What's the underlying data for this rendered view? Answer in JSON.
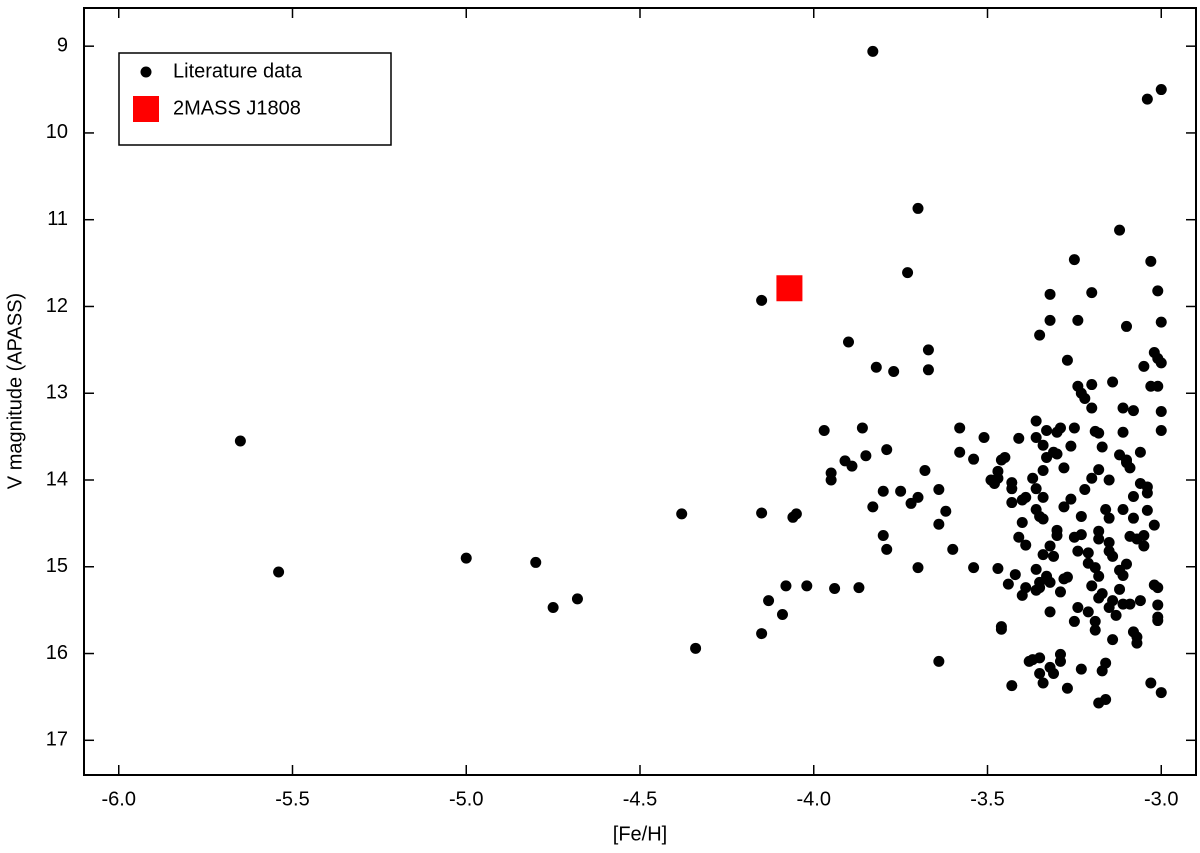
{
  "chart_data": {
    "type": "scatter",
    "xlabel": "[Fe/H]",
    "ylabel": "V magnitude (APASS)",
    "xlim": [
      -6.1,
      -2.9
    ],
    "ylim": [
      8.56,
      17.4
    ],
    "y_inverted": true,
    "xticks": [
      {
        "value": -6,
        "label": "-6.0"
      },
      -5.5,
      {
        "value": -5,
        "label": "-5.0"
      },
      -4.5,
      {
        "value": -4,
        "label": "-4.0"
      },
      -3.5,
      {
        "value": -3,
        "label": "-3.0"
      }
    ],
    "yticks": [
      9,
      10,
      11,
      12,
      13,
      14,
      15,
      16,
      17
    ],
    "legend": "top-left",
    "series": [
      {
        "name": "Literature data",
        "color": "#000000",
        "marker": "circle",
        "x": [
          -3.83,
          -3.0,
          -3.04,
          -3.7,
          -3.12,
          -3.25,
          -3.03,
          -3.73,
          -3.2,
          -3.01,
          -4.15,
          -3.32,
          -3.0,
          -3.32,
          -3.24,
          -3.1,
          -3.35,
          -3.9,
          -3.67,
          -3.02,
          -3.01,
          -3.27,
          -3.05,
          -3.0,
          -3.82,
          -3.77,
          -3.67,
          -3.14,
          -3.24,
          -3.2,
          -3.03,
          -3.01,
          -3.22,
          -3.23,
          -3.2,
          -3.11,
          -3.08,
          -3.0,
          -3.36,
          -3.29,
          -3.3,
          -3.33,
          -3.25,
          -3.19,
          -3.18,
          -3.11,
          -3.0,
          -3.97,
          -3.86,
          -3.58,
          -3.36,
          -3.41,
          -3.51,
          -5.65,
          -3.79,
          -3.58,
          -3.54,
          -3.45,
          -3.46,
          -3.34,
          -3.31,
          -3.33,
          -3.3,
          -3.26,
          -3.17,
          -3.06,
          -3.12,
          -3.1,
          -3.1,
          -3.09,
          -3.18,
          -3.85,
          -3.91,
          -3.89,
          -3.68,
          -3.95,
          -3.28,
          -3.34,
          -3.47,
          -3.47,
          -3.49,
          -3.48,
          -3.43,
          -3.37,
          -3.2,
          -3.15,
          -3.06,
          -3.04,
          -3.95,
          -3.22,
          -3.36,
          -3.43,
          -3.64,
          -3.8,
          -3.75,
          -3.04,
          -3.08,
          -3.39,
          -3.34,
          -3.4,
          -3.26,
          -3.72,
          -3.7,
          -3.43,
          -3.28,
          -3.83,
          -3.16,
          -3.11,
          -3.04,
          -3.36,
          -3.35,
          -3.62,
          -4.38,
          -4.15,
          -4.05,
          -4.06,
          -3.23,
          -3.08,
          -3.15,
          -3.34,
          -3.4,
          -3.64,
          -3.02,
          -3.3,
          -3.18,
          -3.3,
          -3.05,
          -3.09,
          -3.41,
          -3.23,
          -3.25,
          -3.18,
          -3.15,
          -3.07,
          -3.39,
          -3.05,
          -3.8,
          -3.79,
          -3.6,
          -3.32,
          -3.24,
          -3.21,
          -3.15,
          -3.14,
          -3.31,
          -3.34,
          -5.0,
          -4.8,
          -3.7,
          -3.54,
          -3.47,
          -3.36,
          -3.21,
          -3.19,
          -3.1,
          -3.12,
          -5.54,
          -3.42,
          -3.33,
          -3.27,
          -3.18,
          -3.11,
          -3.44,
          -3.39,
          -3.35,
          -3.35,
          -3.32,
          -3.28,
          -3.2,
          -3.12,
          -3.02,
          -3.01,
          -4.08,
          -4.02,
          -3.94,
          -3.87,
          -3.36,
          -3.29,
          -3.17,
          -3.4,
          -4.13,
          -3.14,
          -3.18,
          -4.68,
          -3.06,
          -3.11,
          -3.09,
          -3.01,
          -3.15,
          -3.24,
          -4.75,
          -3.32,
          -3.21,
          -3.13,
          -4.09,
          -3.01,
          -3.01,
          -3.25,
          -3.19,
          -3.46,
          -3.46,
          -3.19,
          -3.08,
          -4.15,
          -3.07,
          -3.14,
          -3.07,
          -4.34,
          -3.29,
          -3.37,
          -3.38,
          -3.35,
          -3.29,
          -3.64,
          -3.16,
          -3.17,
          -3.23,
          -3.32,
          -3.35,
          -3.31,
          -3.03,
          -3.34,
          -3.43,
          -3.27,
          -3.0,
          -3.16,
          -3.18
        ],
        "y": [
          9.06,
          9.5,
          9.61,
          10.87,
          11.12,
          11.46,
          11.48,
          11.61,
          11.84,
          11.82,
          11.93,
          11.86,
          12.18,
          12.16,
          12.16,
          12.23,
          12.33,
          12.41,
          12.5,
          12.53,
          12.6,
          12.62,
          12.69,
          12.65,
          12.7,
          12.75,
          12.73,
          12.87,
          12.92,
          12.9,
          12.92,
          12.92,
          13.06,
          13.0,
          13.17,
          13.17,
          13.2,
          13.21,
          13.32,
          13.4,
          13.45,
          13.43,
          13.4,
          13.44,
          13.46,
          13.45,
          13.43,
          13.43,
          13.4,
          13.4,
          13.51,
          13.52,
          13.51,
          13.55,
          13.65,
          13.68,
          13.76,
          13.74,
          13.77,
          13.6,
          13.68,
          13.74,
          13.7,
          13.61,
          13.62,
          13.68,
          13.71,
          13.77,
          13.8,
          13.86,
          13.88,
          13.72,
          13.78,
          13.84,
          13.89,
          13.92,
          13.86,
          13.89,
          13.9,
          13.98,
          14.0,
          14.04,
          14.03,
          13.98,
          13.98,
          14.0,
          14.04,
          14.08,
          14.0,
          14.11,
          14.1,
          14.1,
          14.11,
          14.13,
          14.13,
          14.15,
          14.19,
          14.2,
          14.2,
          14.23,
          14.22,
          14.27,
          14.2,
          14.26,
          14.31,
          14.31,
          14.34,
          14.34,
          14.35,
          14.34,
          14.42,
          14.36,
          14.39,
          14.38,
          14.39,
          14.43,
          14.42,
          14.44,
          14.44,
          14.45,
          14.49,
          14.51,
          14.52,
          14.58,
          14.59,
          14.64,
          14.64,
          14.65,
          14.66,
          14.63,
          14.66,
          14.68,
          14.72,
          14.68,
          14.75,
          14.76,
          14.64,
          14.8,
          14.8,
          14.76,
          14.82,
          14.84,
          14.82,
          14.88,
          14.88,
          14.86,
          14.9,
          14.95,
          15.01,
          15.01,
          15.02,
          15.03,
          14.96,
          15.01,
          14.97,
          15.04,
          15.06,
          15.09,
          15.11,
          15.12,
          15.11,
          15.1,
          15.2,
          15.24,
          15.24,
          15.18,
          15.18,
          15.14,
          15.22,
          15.26,
          15.21,
          15.24,
          15.22,
          15.22,
          15.25,
          15.24,
          15.27,
          15.29,
          15.31,
          15.33,
          15.39,
          15.39,
          15.36,
          15.37,
          15.39,
          15.43,
          15.43,
          15.44,
          15.47,
          15.47,
          15.47,
          15.52,
          15.52,
          15.56,
          15.55,
          15.58,
          15.62,
          15.63,
          15.63,
          15.69,
          15.72,
          15.73,
          15.75,
          15.77,
          15.81,
          15.84,
          15.88,
          15.94,
          16.01,
          16.07,
          16.09,
          16.05,
          16.09,
          16.09,
          16.11,
          16.2,
          16.18,
          16.16,
          16.23,
          16.23,
          16.34,
          16.34,
          16.37,
          16.4,
          16.45,
          16.53,
          16.57
        ]
      },
      {
        "name": "2MASS J1808",
        "color": "#ff0000",
        "marker": "square",
        "x": [
          -4.07
        ],
        "y": [
          11.79
        ]
      }
    ]
  }
}
